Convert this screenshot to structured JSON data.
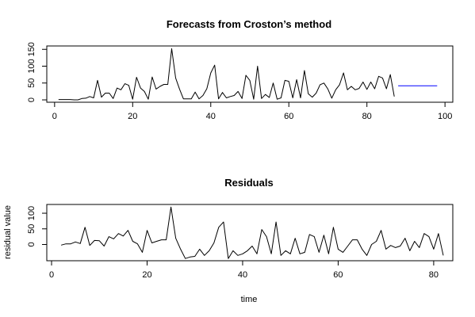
{
  "chart_data": [
    {
      "type": "line",
      "title": "Forecasts from Croston’s method",
      "xlabel": "",
      "ylabel": "",
      "xlim": [
        -2,
        102
      ],
      "ylim": [
        -7,
        160
      ],
      "x_ticks": [
        0,
        20,
        40,
        60,
        80,
        100
      ],
      "y_ticks": [
        0,
        50,
        100,
        150
      ],
      "y_tick_labels": [
        "0",
        "50",
        "100",
        "150"
      ],
      "grid": false,
      "series": [
        {
          "color": "#000000",
          "x_start": 1,
          "values": [
            1,
            1,
            1,
            1,
            0,
            0,
            4,
            5,
            10,
            6,
            58,
            8,
            20,
            20,
            4,
            35,
            30,
            48,
            43,
            2,
            67,
            35,
            25,
            2,
            68,
            32,
            40,
            46,
            46,
            152,
            65,
            32,
            3,
            3,
            3,
            23,
            3,
            13,
            33,
            80,
            103,
            3,
            22,
            6,
            10,
            13,
            25,
            4,
            73,
            58,
            2,
            100,
            4,
            16,
            7,
            50,
            2,
            6,
            58,
            55,
            6,
            60,
            6,
            87,
            18,
            8,
            20,
            45,
            50,
            32,
            5,
            30,
            45,
            80,
            30,
            40,
            30,
            34,
            53,
            31,
            53,
            33,
            70,
            65,
            33,
            75,
            10
          ]
        },
        {
          "color": "#0000ff",
          "x": [
            88,
            98
          ],
          "values": [
            42,
            42
          ]
        }
      ]
    },
    {
      "type": "line",
      "title": "Residuals",
      "xlabel": "time",
      "ylabel": "residual value",
      "xlim": [
        -1,
        84
      ],
      "ylim": [
        -52,
        128
      ],
      "x_ticks": [
        0,
        20,
        40,
        60,
        80
      ],
      "y_ticks": [
        0,
        50,
        100
      ],
      "y_tick_labels": [
        "0",
        "50",
        "100"
      ],
      "grid": false,
      "series": [
        {
          "color": "#000000",
          "x_start": 2,
          "values": [
            -2,
            2,
            2,
            8,
            3,
            55,
            -3,
            13,
            12,
            -5,
            25,
            18,
            35,
            27,
            45,
            10,
            2,
            -25,
            45,
            5,
            10,
            15,
            15,
            120,
            20,
            -15,
            -45,
            -40,
            -38,
            -15,
            -35,
            -20,
            5,
            55,
            72,
            -45,
            -20,
            -35,
            -30,
            -20,
            -5,
            -30,
            48,
            25,
            -30,
            72,
            -35,
            -20,
            -30,
            20,
            -30,
            -25,
            32,
            25,
            -25,
            30,
            -30,
            55,
            -15,
            -25,
            -5,
            15,
            15,
            -15,
            -35,
            0,
            10,
            45,
            -15,
            -3,
            -10,
            -5,
            20,
            -20,
            10,
            -10,
            35,
            25,
            -15,
            35,
            -35
          ]
        }
      ]
    }
  ]
}
